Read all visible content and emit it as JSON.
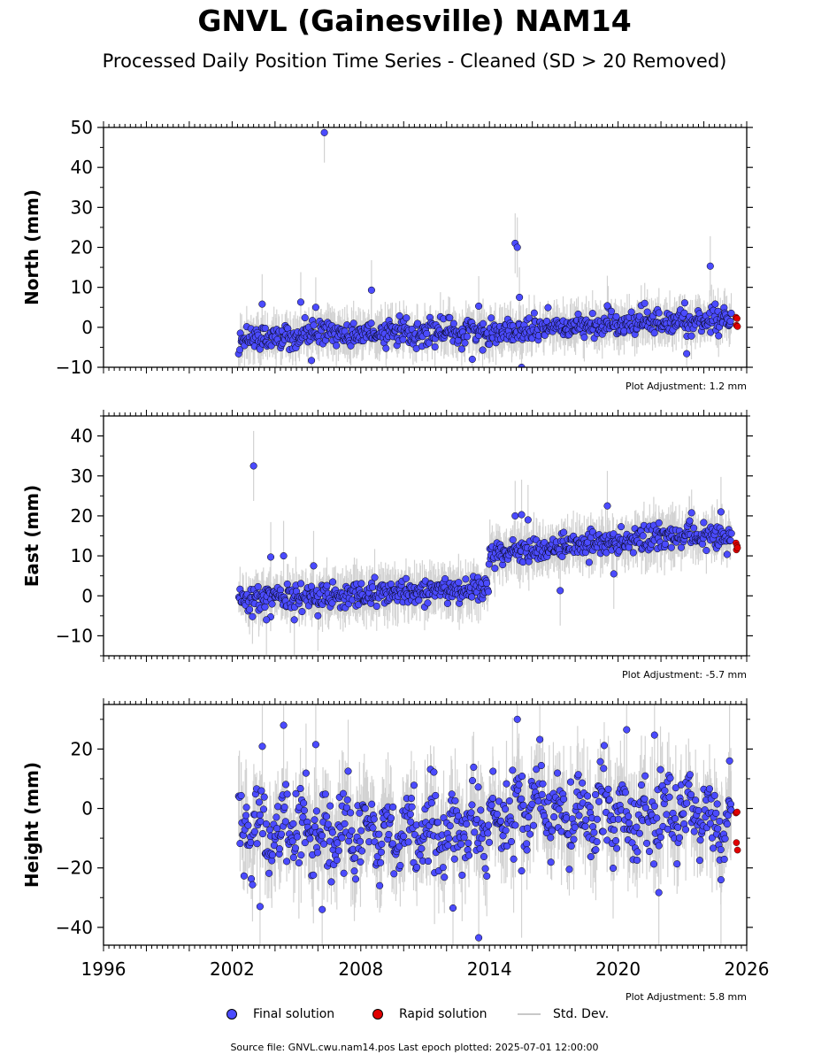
{
  "page": {
    "title": "GNVL (Gainesville) NAM14",
    "subtitle": "Processed Daily Position Time Series - Cleaned (SD > 20 Removed)",
    "source": "Source file: GNVL.cwu.nam14.pos  Last epoch plotted: 2025-07-01 12:00:00"
  },
  "legend": {
    "final": "Final solution",
    "rapid": "Rapid solution",
    "std": "Std. Dev."
  },
  "colors": {
    "final": "#4b4bff",
    "rapid": "#e00000",
    "std": "#c8c8c8",
    "outline": "#000000"
  },
  "chart_data": [
    {
      "type": "scatter",
      "ylabel": "North (mm)",
      "xlim": [
        1996,
        2026
      ],
      "ylim": [
        -10,
        50
      ],
      "yticks": [
        -10,
        0,
        10,
        20,
        30,
        40,
        50
      ],
      "ytick_labels": [
        "−10",
        "0",
        "10",
        "20",
        "30",
        "40",
        "50"
      ],
      "adjustment": "Plot Adjustment: 1.2 mm",
      "trend": [
        [
          2002.3,
          -2.5
        ],
        [
          2008,
          -1.5
        ],
        [
          2014,
          -1
        ],
        [
          2018,
          0
        ],
        [
          2020,
          1
        ],
        [
          2025.3,
          2
        ]
      ],
      "offset": null,
      "noise_sd": 1.5,
      "sd_len": 3,
      "outliers": [
        [
          2006.3,
          48.7
        ],
        [
          2015.2,
          21
        ],
        [
          2015.3,
          20
        ],
        [
          2008.5,
          9.3
        ],
        [
          2015.4,
          7.5
        ],
        [
          2024.3,
          15.3
        ],
        [
          2013.5,
          5.3
        ],
        [
          2005.9,
          5
        ],
        [
          2005.2,
          6.3
        ],
        [
          2003.4,
          5.8
        ],
        [
          2019.5,
          5.4
        ],
        [
          2015.5,
          -10
        ],
        [
          2013.2,
          -8
        ],
        [
          2005.7,
          -8.3
        ],
        [
          2023.2,
          -6.6
        ]
      ],
      "rapid": [
        [
          2025.5,
          2.5
        ],
        [
          2025.55,
          2.2
        ],
        [
          2025.52,
          0.5
        ],
        [
          2025.57,
          0.2
        ]
      ]
    },
    {
      "type": "scatter",
      "ylabel": "East (mm)",
      "xlim": [
        1996,
        2026
      ],
      "ylim": [
        -15,
        45
      ],
      "yticks": [
        -10,
        0,
        10,
        20,
        30,
        40
      ],
      "ytick_labels": [
        "−10",
        "0",
        "10",
        "20",
        "30",
        "40"
      ],
      "adjustment": "Plot Adjustment: -5.7 mm",
      "trend": [
        [
          2002.3,
          -1
        ],
        [
          2008,
          0.5
        ],
        [
          2013.9,
          2
        ],
        [
          2013.95,
          10.5
        ],
        [
          2018,
          12.5
        ],
        [
          2022,
          14.5
        ],
        [
          2025.3,
          14.5
        ]
      ],
      "offset": 2013.9,
      "noise_sd": 1.6,
      "sd_len": 3.5,
      "outliers": [
        [
          2003,
          32.5
        ],
        [
          2019.5,
          22.5
        ],
        [
          2015.2,
          20
        ],
        [
          2015.5,
          20.3
        ],
        [
          2017.3,
          1.3
        ],
        [
          2019.8,
          5.5
        ],
        [
          2003.8,
          9.7
        ],
        [
          2004.4,
          10
        ],
        [
          2005.8,
          7.5
        ],
        [
          2006.0,
          -5
        ],
        [
          2003.6,
          -6
        ],
        [
          2004.9,
          -6
        ],
        [
          2015.8,
          19
        ],
        [
          2024.8,
          21
        ]
      ],
      "rapid": [
        [
          2025.5,
          13.2
        ],
        [
          2025.55,
          12.5
        ],
        [
          2025.52,
          11.5
        ],
        [
          2025.57,
          12
        ]
      ]
    },
    {
      "type": "scatter",
      "ylabel": "Height (mm)",
      "xlim": [
        1996,
        2026
      ],
      "ylim": [
        -46,
        35
      ],
      "yticks": [
        -40,
        -20,
        0,
        20
      ],
      "ytick_labels": [
        "−40",
        "−20",
        "0",
        "20"
      ],
      "xticks": [
        1996,
        2002,
        2008,
        2014,
        2020,
        2026
      ],
      "adjustment": "Plot Adjustment: 5.8 mm",
      "trend": [
        [
          2002.3,
          -7
        ],
        [
          2008,
          -8
        ],
        [
          2012,
          -9
        ],
        [
          2014,
          -5
        ],
        [
          2016,
          0
        ],
        [
          2020,
          -2
        ],
        [
          2025.3,
          -4
        ]
      ],
      "offset": null,
      "noise_sd": 6.5,
      "sd_len": 9,
      "outliers": [
        [
          2004.4,
          28
        ],
        [
          2015.3,
          30
        ],
        [
          2020.4,
          26.5
        ],
        [
          2021.7,
          24.7
        ],
        [
          2013.5,
          -43.5
        ],
        [
          2006.2,
          -34
        ],
        [
          2012.3,
          -33.5
        ],
        [
          2003.3,
          -33
        ],
        [
          2015.5,
          -21
        ],
        [
          2021.9,
          -28.3
        ],
        [
          2024.8,
          -24
        ],
        [
          2005.9,
          21.5
        ],
        [
          2025.2,
          16
        ]
      ],
      "rapid": [
        [
          2025.5,
          -1.5
        ],
        [
          2025.55,
          -1.2
        ],
        [
          2025.52,
          -11.5
        ],
        [
          2025.57,
          -14
        ]
      ]
    }
  ]
}
